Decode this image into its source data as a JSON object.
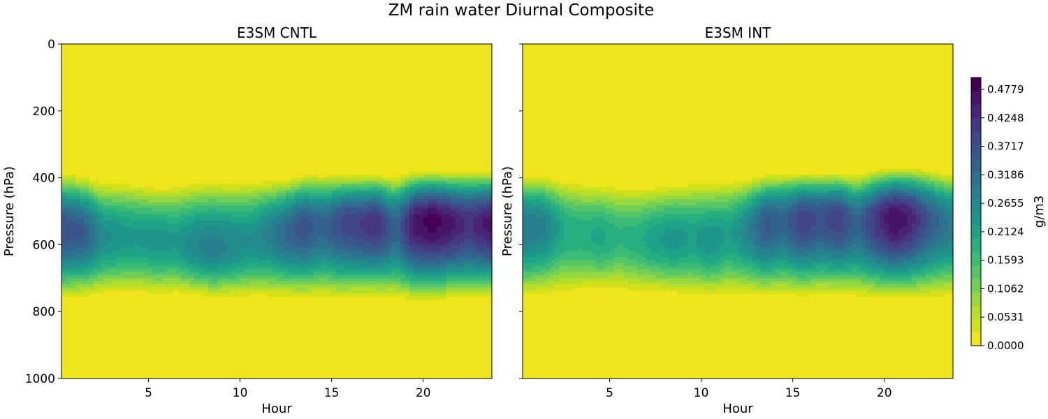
{
  "figure": {
    "suptitle": "ZM rain water Diurnal Composite"
  },
  "colors": {
    "viridis_r_levels": [
      "#eee51c",
      "#d2e11b",
      "#b5de2b",
      "#95d840",
      "#74d055",
      "#55c667",
      "#3bbb75",
      "#29af7f",
      "#20a386",
      "#1f968b",
      "#238a8d",
      "#287d8e",
      "#2d718e",
      "#33638d",
      "#3a548c",
      "#404688",
      "#453781",
      "#482576",
      "#481467",
      "#440154"
    ]
  },
  "chart_data": [
    {
      "type": "heatmap",
      "title": "E3SM CNTL",
      "xlabel": "Hour",
      "ylabel": "Pressure (hPa)",
      "xlim": [
        0.25,
        23.75
      ],
      "ylim": [
        1000,
        0
      ],
      "x_ticks": [
        5,
        10,
        15,
        20
      ],
      "y_ticks": [
        0,
        200,
        400,
        600,
        800,
        1000
      ],
      "y_inverted": true,
      "colormap": "viridis_r",
      "x_hours": [
        0.5,
        1.5,
        2.5,
        3.5,
        4.5,
        5.5,
        6.5,
        7.5,
        8.5,
        9.5,
        10.5,
        11.5,
        12.5,
        13.5,
        14.5,
        15.5,
        16.5,
        17.5,
        18.5,
        19.5,
        20.5,
        21.5,
        22.5,
        23.5
      ],
      "layer_top_hpa": [
        380,
        390,
        405,
        405,
        410,
        420,
        415,
        405,
        400,
        405,
        400,
        400,
        395,
        385,
        385,
        385,
        385,
        385,
        390,
        375,
        375,
        375,
        375,
        375
      ],
      "layer_bottom_hpa": [
        770,
        765,
        755,
        755,
        755,
        760,
        755,
        760,
        765,
        765,
        765,
        765,
        765,
        770,
        765,
        770,
        765,
        765,
        770,
        775,
        775,
        770,
        770,
        770
      ],
      "peak_pressure_hpa": [
        555,
        560,
        575,
        575,
        580,
        585,
        590,
        600,
        610,
        600,
        590,
        570,
        565,
        545,
        545,
        535,
        535,
        535,
        550,
        535,
        530,
        535,
        535,
        535
      ],
      "peak_value_gm3": [
        0.37,
        0.35,
        0.26,
        0.24,
        0.23,
        0.24,
        0.23,
        0.27,
        0.29,
        0.27,
        0.25,
        0.28,
        0.33,
        0.37,
        0.33,
        0.38,
        0.4,
        0.42,
        0.33,
        0.46,
        0.49,
        0.46,
        0.42,
        0.46
      ]
    },
    {
      "type": "heatmap",
      "title": "E3SM INT",
      "xlabel": "Hour",
      "ylabel": "Pressure (hPa)",
      "xlim": [
        0.25,
        23.75
      ],
      "ylim": [
        1000,
        0
      ],
      "x_ticks": [
        5,
        10,
        15,
        20
      ],
      "y_ticks": [
        0,
        200,
        400,
        600,
        800,
        1000
      ],
      "y_inverted": true,
      "colormap": "viridis_r",
      "x_hours": [
        0.5,
        1.5,
        2.5,
        3.5,
        4.5,
        5.5,
        6.5,
        7.5,
        8.5,
        9.5,
        10.5,
        11.5,
        12.5,
        13.5,
        14.5,
        15.5,
        16.5,
        17.5,
        18.5,
        19.5,
        20.5,
        21.5,
        22.5,
        23.5
      ],
      "layer_top_hpa": [
        385,
        390,
        400,
        405,
        410,
        415,
        420,
        415,
        410,
        405,
        405,
        400,
        395,
        385,
        380,
        380,
        380,
        380,
        385,
        370,
        365,
        365,
        370,
        380
      ],
      "layer_bottom_hpa": [
        765,
        760,
        755,
        750,
        745,
        745,
        755,
        750,
        755,
        760,
        760,
        760,
        760,
        765,
        760,
        765,
        760,
        760,
        765,
        770,
        770,
        770,
        770,
        765
      ],
      "peak_pressure_hpa": [
        545,
        540,
        555,
        570,
        575,
        575,
        580,
        585,
        585,
        580,
        590,
        570,
        555,
        535,
        530,
        525,
        520,
        520,
        535,
        525,
        520,
        520,
        525,
        535
      ],
      "peak_value_gm3": [
        0.3,
        0.28,
        0.2,
        0.19,
        0.21,
        0.18,
        0.19,
        0.22,
        0.24,
        0.22,
        0.25,
        0.22,
        0.27,
        0.36,
        0.33,
        0.4,
        0.37,
        0.4,
        0.33,
        0.41,
        0.48,
        0.44,
        0.35,
        0.3
      ]
    }
  ],
  "colorbar": {
    "label": "g/m3",
    "min": 0.0,
    "max": 0.5,
    "ticks": [
      0.0,
      0.0531,
      0.1062,
      0.1593,
      0.2124,
      0.2655,
      0.3186,
      0.3717,
      0.4248,
      0.4779
    ],
    "tick_labels": [
      "0.0000",
      "0.0531",
      "0.1062",
      "0.1593",
      "0.2124",
      "0.2655",
      "0.3186",
      "0.3717",
      "0.4248",
      "0.4779"
    ]
  }
}
